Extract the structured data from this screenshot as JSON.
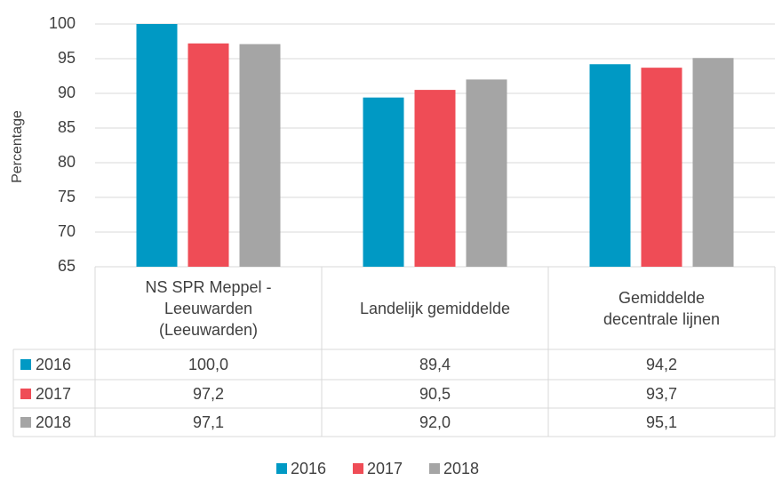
{
  "chart_data": {
    "type": "bar",
    "y_label": "Percentage",
    "categories": [
      "NS SPR Meppel -\nLeeuwarden\n(Leeuwarden)",
      "Landelijk gemiddelde",
      "Gemiddelde\ndecentrale lijnen"
    ],
    "series": [
      {
        "name": "2016",
        "color": "#0099c4",
        "values": [
          100.0,
          89.4,
          94.2
        ],
        "value_labels": [
          "100,0",
          "89,4",
          "94,2"
        ]
      },
      {
        "name": "2017",
        "color": "#ef4c56",
        "values": [
          97.2,
          90.5,
          93.7
        ],
        "value_labels": [
          "97,2",
          "90,5",
          "93,7"
        ]
      },
      {
        "name": "2018",
        "color": "#a5a5a5",
        "values": [
          97.1,
          92.0,
          95.1
        ],
        "value_labels": [
          "97,1",
          "92,0",
          "95,1"
        ]
      }
    ],
    "ylim": [
      65,
      100
    ],
    "yticks": [
      65,
      70,
      75,
      80,
      85,
      90,
      95,
      100
    ],
    "grid": true,
    "legend": "bottom"
  }
}
